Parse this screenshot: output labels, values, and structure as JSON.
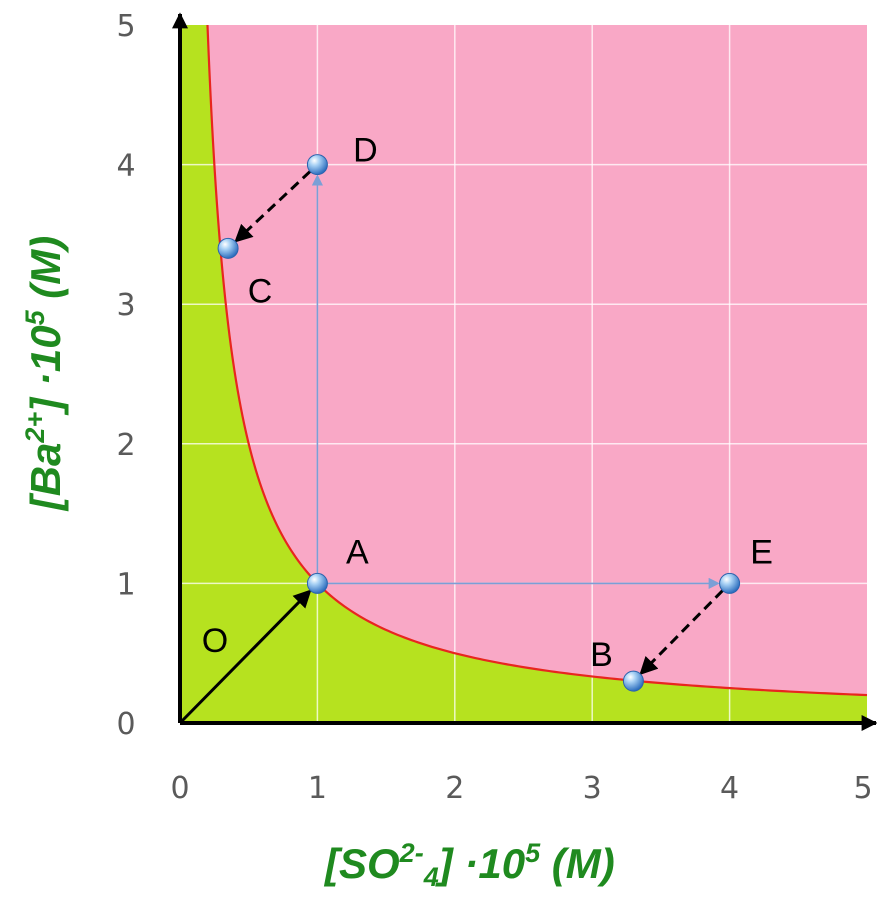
{
  "chart_data": {
    "type": "line",
    "title": "",
    "xlim": [
      0,
      5
    ],
    "ylim": [
      0,
      5
    ],
    "x_ticks": [
      "0",
      "1",
      "2",
      "3",
      "4",
      "5"
    ],
    "y_ticks": [
      "0",
      "1",
      "2",
      "3",
      "4",
      "5"
    ],
    "grid": true,
    "xlabel": {
      "open": "[SO",
      "sup": "2-",
      "sub": "4",
      "close": "] ·10",
      "exp": "5",
      "unit": " (M)"
    },
    "ylabel": {
      "open": "[Ba",
      "sup": "2+",
      "close": "] ·10",
      "exp": "5",
      "unit": " (M)"
    },
    "curve": {
      "equation": "x*y=1",
      "color": "#e8261e"
    },
    "regions": {
      "above_curve": "#f9a8c6",
      "below_curve": "#b6e21f"
    },
    "points": [
      {
        "label": "A",
        "x": 1,
        "y": 1
      },
      {
        "label": "B",
        "x": 3.3,
        "y": 0.3
      },
      {
        "label": "C",
        "x": 0.35,
        "y": 3.4
      },
      {
        "label": "D",
        "x": 1,
        "y": 4
      },
      {
        "label": "E",
        "x": 4,
        "y": 1
      }
    ],
    "origin_label": "O",
    "arrows": [
      {
        "from": "O",
        "to": "A",
        "style": "solid",
        "color": "#000000"
      },
      {
        "from": "A",
        "to": "D",
        "style": "solid",
        "color": "#7b9fd6"
      },
      {
        "from": "A",
        "to": "E",
        "style": "solid",
        "color": "#7b9fd6"
      },
      {
        "from": "D",
        "to": "C",
        "style": "dashed",
        "color": "#000000"
      },
      {
        "from": "E",
        "to": "B",
        "style": "dashed",
        "color": "#000000"
      }
    ]
  }
}
